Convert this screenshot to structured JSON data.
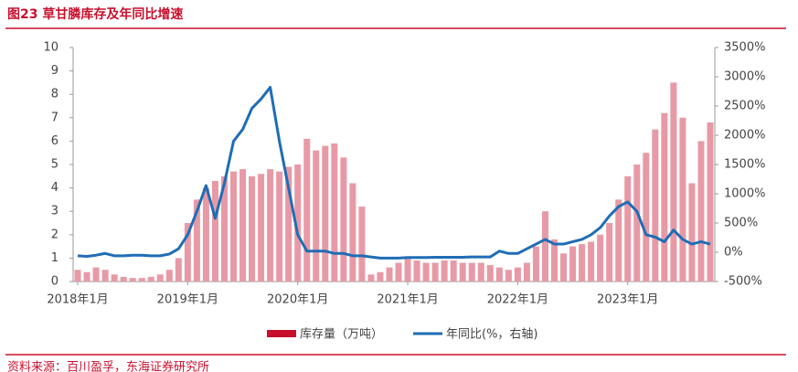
{
  "chart_data": {
    "type": "bar_line",
    "title": "图23 草甘膦库存及年同比增速",
    "source": "资料来源：百川盈孚，东海证券研究所",
    "categories": [
      "2018年1月",
      null,
      null,
      null,
      null,
      null,
      null,
      null,
      null,
      null,
      null,
      null,
      "2019年1月",
      null,
      null,
      null,
      null,
      null,
      null,
      null,
      null,
      null,
      null,
      null,
      "2020年1月",
      null,
      null,
      null,
      null,
      null,
      null,
      null,
      null,
      null,
      null,
      null,
      "2021年1月",
      null,
      null,
      null,
      null,
      null,
      null,
      null,
      null,
      null,
      null,
      null,
      "2022年1月",
      null,
      null,
      null,
      null,
      null,
      null,
      null,
      null,
      null,
      null,
      null,
      "2023年1月",
      null,
      null,
      null,
      null,
      null,
      null,
      null,
      null,
      null
    ],
    "series": [
      {
        "name": "库存量（万吨）",
        "type": "bar",
        "color": "#e79aa6",
        "values": [
          0.5,
          0.4,
          0.6,
          0.5,
          0.3,
          0.2,
          0.15,
          0.15,
          0.2,
          0.3,
          0.5,
          1.0,
          2.5,
          3.5,
          4.0,
          4.3,
          4.5,
          4.7,
          4.8,
          4.5,
          4.6,
          4.8,
          4.7,
          4.9,
          5.0,
          6.1,
          5.6,
          5.8,
          5.9,
          5.3,
          4.2,
          3.2,
          0.3,
          0.4,
          0.6,
          0.8,
          1.0,
          0.9,
          0.8,
          0.8,
          0.9,
          0.9,
          0.8,
          0.8,
          0.8,
          0.7,
          0.6,
          0.5,
          0.6,
          0.8,
          1.5,
          3.0,
          1.8,
          1.2,
          1.5,
          1.6,
          1.7,
          2.0,
          2.5,
          3.5,
          4.5,
          5.0,
          5.5,
          6.5,
          7.2,
          8.5,
          7.0,
          4.2,
          6.0,
          6.8
        ]
      },
      {
        "name": "年同比(%，右轴)",
        "type": "line",
        "axis": "y2",
        "color": "#1f6db5",
        "values": [
          -60,
          -70,
          -50,
          -20,
          -60,
          -60,
          -50,
          -50,
          -60,
          -60,
          -30,
          60,
          300,
          700,
          1140,
          580,
          1180,
          1900,
          2100,
          2460,
          2620,
          2820,
          1900,
          1100,
          300,
          20,
          20,
          20,
          -20,
          -20,
          -60,
          -60,
          -80,
          -100,
          -100,
          -100,
          -90,
          -90,
          -90,
          -85,
          -85,
          -85,
          -85,
          -80,
          -80,
          -80,
          20,
          -20,
          -20,
          60,
          140,
          220,
          140,
          140,
          180,
          220,
          300,
          420,
          620,
          780,
          860,
          700,
          300,
          260,
          180,
          380,
          220,
          140,
          180,
          140
        ]
      }
    ],
    "ylim": [
      0,
      10
    ],
    "yticks": [
      0,
      1,
      2,
      3,
      4,
      5,
      6,
      7,
      8,
      9,
      10
    ],
    "y2lim": [
      -500,
      3500
    ],
    "y2ticks": [
      {
        "value": -500,
        "label": "-500%"
      },
      {
        "value": 0,
        "label": "0%"
      },
      {
        "value": 500,
        "label": "500%"
      },
      {
        "value": 1000,
        "label": "1000%"
      },
      {
        "value": 1500,
        "label": "1500%"
      },
      {
        "value": 2000,
        "label": "2000%"
      },
      {
        "value": 2500,
        "label": "2500%"
      },
      {
        "value": 3000,
        "label": "3000%"
      },
      {
        "value": 3500,
        "label": "3500%"
      }
    ],
    "grid": false
  }
}
